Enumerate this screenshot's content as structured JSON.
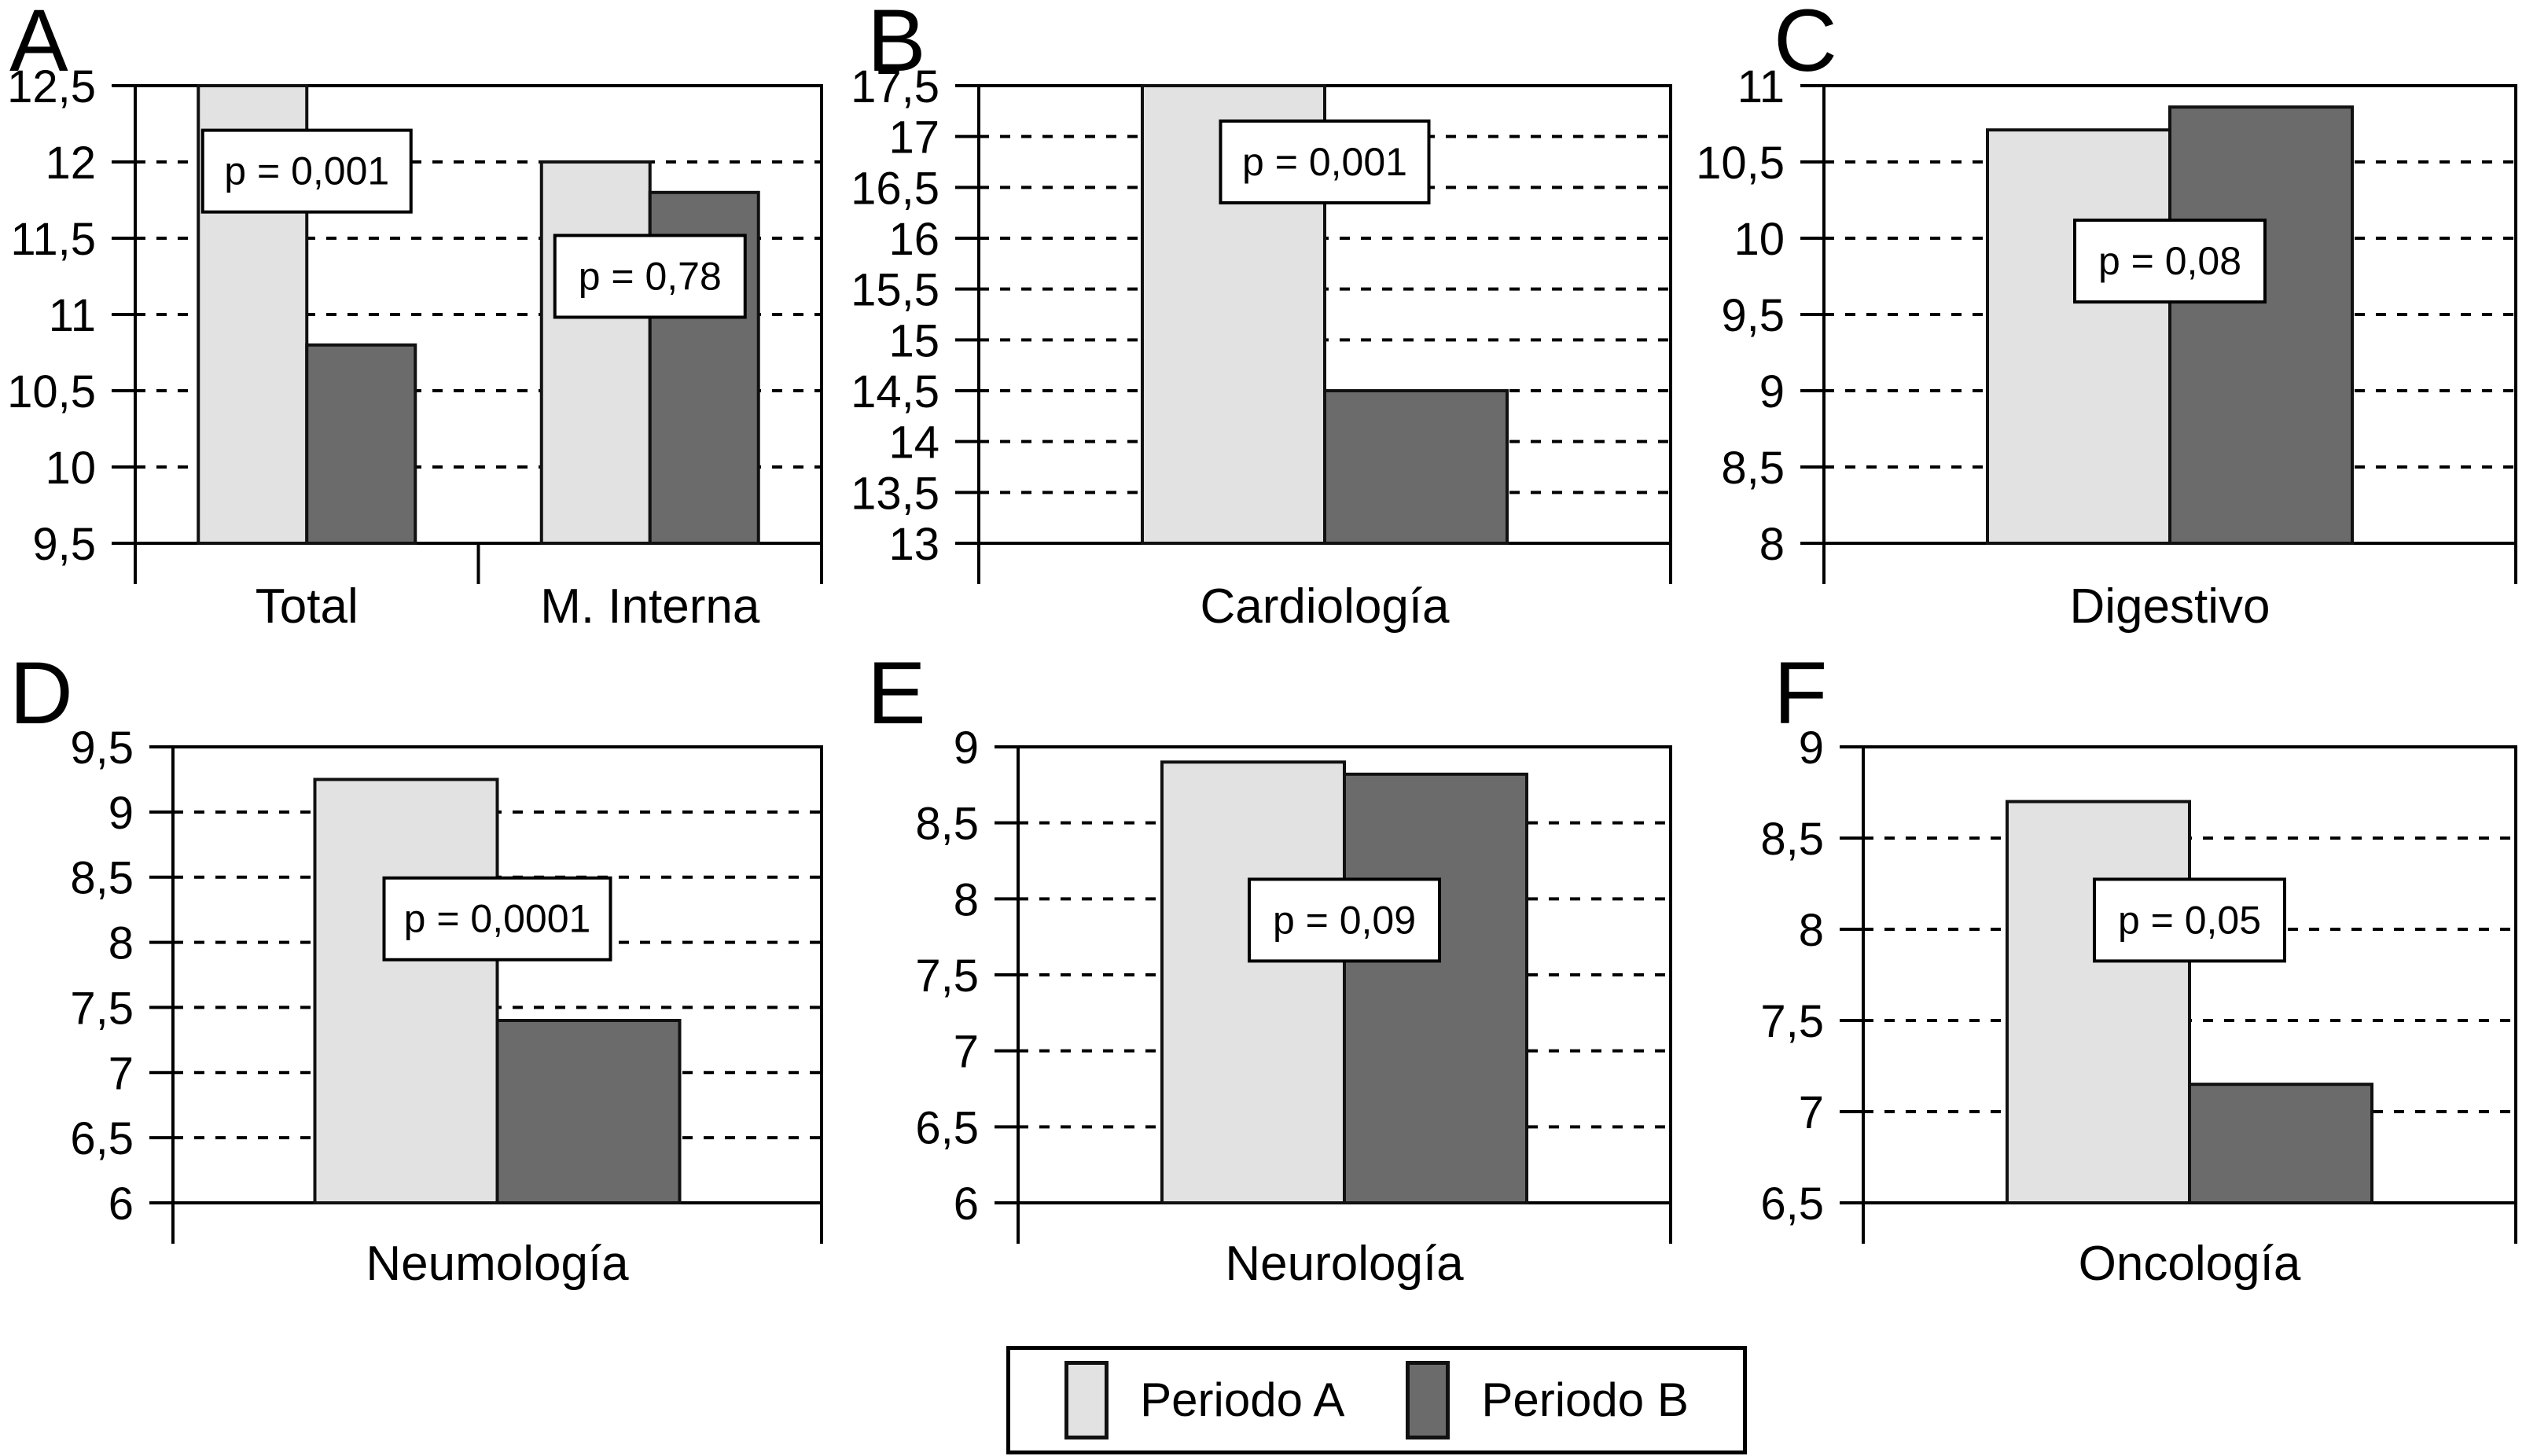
{
  "figure": {
    "background": "#ffffff",
    "bar_colors": {
      "periodo_a": "#e2e2e2",
      "periodo_b": "#6b6b6b"
    },
    "line_color": "#000000",
    "legend": {
      "items": [
        {
          "label": "Periodo A",
          "color": "#e2e2e2"
        },
        {
          "label": "Periodo B",
          "color": "#6b6b6b"
        }
      ]
    }
  },
  "chart_data": [
    {
      "type": "bar",
      "panel_label": "A",
      "categories": [
        "Total",
        "M. Interna"
      ],
      "series": [
        {
          "name": "Periodo A",
          "values": [
            12.5,
            12.0
          ]
        },
        {
          "name": "Periodo B",
          "values": [
            10.8,
            11.8
          ]
        }
      ],
      "ylim": [
        9.5,
        12.5
      ],
      "ytick_step": 0.5,
      "ytick_labels": [
        "9,5",
        "10",
        "10,5",
        "11",
        "11,5",
        "12",
        "12,5"
      ],
      "grid": "dashed-horizontal",
      "annotations": [
        {
          "text": "p = 0,001",
          "category_index": 0,
          "y": 11.94
        },
        {
          "text": "p = 0,78",
          "category_index": 1,
          "y": 11.25
        }
      ]
    },
    {
      "type": "bar",
      "panel_label": "B",
      "categories": [
        "Cardiología"
      ],
      "series": [
        {
          "name": "Periodo A",
          "values": [
            17.5
          ]
        },
        {
          "name": "Periodo B",
          "values": [
            14.5
          ]
        }
      ],
      "ylim": [
        13,
        17.5
      ],
      "ytick_step": 0.5,
      "ytick_labels": [
        "13",
        "13,5",
        "14",
        "14,5",
        "15",
        "15,5",
        "16",
        "16,5",
        "17",
        "17,5"
      ],
      "grid": "dashed-horizontal",
      "annotations": [
        {
          "text": "p = 0,001",
          "category_index": 0,
          "y": 16.75
        }
      ]
    },
    {
      "type": "bar",
      "panel_label": "C",
      "categories": [
        "Digestivo"
      ],
      "series": [
        {
          "name": "Periodo A",
          "values": [
            10.71
          ]
        },
        {
          "name": "Periodo B",
          "values": [
            10.86
          ]
        }
      ],
      "ylim": [
        8,
        11
      ],
      "ytick_step": 0.5,
      "ytick_labels": [
        "8",
        "8,5",
        "9",
        "9,5",
        "10",
        "10,5",
        "11"
      ],
      "grid": "dashed-horizontal",
      "annotations": [
        {
          "text": "p = 0,08",
          "category_index": 0,
          "y": 9.85
        }
      ]
    },
    {
      "type": "bar",
      "panel_label": "D",
      "categories": [
        "Neumología"
      ],
      "series": [
        {
          "name": "Periodo A",
          "values": [
            9.25
          ]
        },
        {
          "name": "Periodo B",
          "values": [
            7.4
          ]
        }
      ],
      "ylim": [
        6,
        9.5
      ],
      "ytick_step": 0.5,
      "ytick_labels": [
        "6",
        "6,5",
        "7",
        "7,5",
        "8",
        "8,5",
        "9",
        "9,5"
      ],
      "grid": "dashed-horizontal",
      "annotations": [
        {
          "text": "p = 0,0001",
          "category_index": 0,
          "y": 8.18
        }
      ]
    },
    {
      "type": "bar",
      "panel_label": "E",
      "categories": [
        "Neurología"
      ],
      "series": [
        {
          "name": "Periodo A",
          "values": [
            8.9
          ]
        },
        {
          "name": "Periodo B",
          "values": [
            8.82
          ]
        }
      ],
      "ylim": [
        6,
        9
      ],
      "ytick_step": 0.5,
      "ytick_labels": [
        "6",
        "6,5",
        "7",
        "7,5",
        "8",
        "8,5",
        "9"
      ],
      "grid": "dashed-horizontal",
      "annotations": [
        {
          "text": "p = 0,09",
          "category_index": 0,
          "y": 7.86
        }
      ]
    },
    {
      "type": "bar",
      "panel_label": "F",
      "categories": [
        "Oncología"
      ],
      "series": [
        {
          "name": "Periodo A",
          "values": [
            8.7
          ]
        },
        {
          "name": "Periodo B",
          "values": [
            7.15
          ]
        }
      ],
      "ylim": [
        6.5,
        9
      ],
      "ytick_step": 0.5,
      "ytick_labels": [
        "6,5",
        "7",
        "7,5",
        "8",
        "8,5",
        "9"
      ],
      "grid": "dashed-horizontal",
      "annotations": [
        {
          "text": "p = 0,05",
          "category_index": 0,
          "y": 8.05
        }
      ]
    }
  ]
}
